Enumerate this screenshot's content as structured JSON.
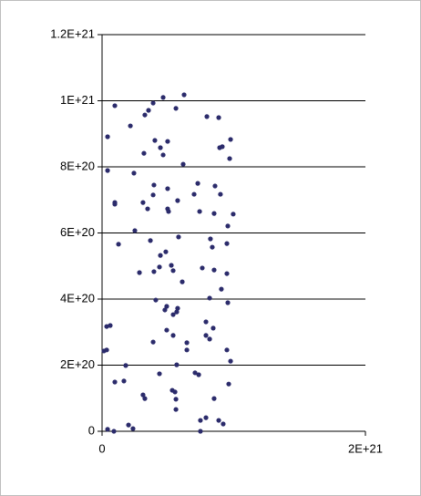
{
  "chart_data": {
    "type": "scatter",
    "color": "#2b2b6b",
    "grid": true,
    "xlim": [
      0,
      2e+21
    ],
    "xticks": [
      0,
      {
        "value": 2e+21,
        "label": "2E+21"
      }
    ],
    "ylim": [
      0,
      1.2e+21
    ],
    "yticks": [
      0,
      {
        "value": 2e+20,
        "label": "2E+20"
      },
      {
        "value": 4e+20,
        "label": "4E+20"
      },
      {
        "value": 6e+20,
        "label": "6E+20"
      },
      {
        "value": 8e+20,
        "label": "8E+20"
      },
      {
        "value": 1e+21,
        "label": "1E+21"
      },
      {
        "value": 1.2e+21,
        "label": "1.2E+21"
      }
    ],
    "x": [
      9.7e+19,
      2.15e+20,
      3.25e+20,
      3.53e+20,
      3.88e+20,
      4.64e+20,
      5.61e+20,
      6.23e+20,
      4.2e+19,
      4.2e+19,
      2.42e+20,
      3.18e+20,
      4.01e+20,
      4.43e+20,
      4.64e+20,
      4.98e+20,
      6.16e+20,
      7.96e+20,
      8.86e+20,
      8.93e+20,
      9.13e+20,
      9.76e+20,
      9.69e+20,
      9.7e+19,
      9.7e+19,
      3.11e+20,
      3.46e+20,
      3.88e+20,
      3.94e+20,
      4.98e+20,
      4.98e+20,
      5.05e+20,
      5.74e+20,
      6.99e+20,
      7.27e+20,
      7.41e+20,
      8.58e+20,
      8.99e+20,
      8.51e+20,
      9.55e+20,
      9.96e+20,
      2.49e+20,
      1.25e+20,
      3.67e+20,
      5.81e+20,
      8.23e+20,
      8.37e+20,
      9.48e+20,
      4.84e+20,
      4.43e+20,
      5.26e+20,
      5.4e+20,
      4.36e+20,
      2.84e+20,
      3.94e+20,
      6.09e+20,
      7.61e+20,
      8.51e+20,
      9.48e+20,
      9.06e+20,
      8.17e+20,
      4.08e+20,
      4.91e+20,
      4.77e+20,
      5.74e+20,
      5.67e+20,
      5.4e+20,
      9.55e+20,
      7.89e+20,
      8.44e+20,
      7.89e+20,
      8.17e+20,
      4.91e+20,
      5.4e+20,
      3.88e+20,
      6.44e+20,
      6.44e+20,
      9.48e+20,
      9.76e+20,
      3.5e+19,
      6.2e+19,
      1.4e+19,
      3.5e+19,
      1.8e+20,
      9.7e+19,
      1.66e+20,
      4.36e+20,
      5.67e+20,
      7.06e+20,
      7.34e+20,
      5.33e+20,
      5.54e+20,
      5.61e+20,
      5.61e+20,
      9.62e+20,
      3.11e+20,
      3.25e+20,
      8.51e+20,
      7.47e+20,
      7.89e+20,
      8.86e+20,
      9.2e+20,
      2.01e+20,
      2.35e+20,
      4.2e+19,
      9e+19,
      7.47e+20
    ],
    "values": [
      9.85e+20,
      9.24e+20,
      9.57e+20,
      9.71e+20,
      9.93e+20,
      1.01e+21,
      9.77e+20,
      1.018e+21,
      8.91e+20,
      7.89e+20,
      7.81e+20,
      8.41e+20,
      8.8e+20,
      8.58e+20,
      8.36e+20,
      8.77e+20,
      8.08e+20,
      9.52e+20,
      9.49e+20,
      8.58e+20,
      8.61e+20,
      8.83e+20,
      8.25e+20,
      6.92e+20,
      6.87e+20,
      6.92e+20,
      6.73e+20,
      7.15e+20,
      7.45e+20,
      7.34e+20,
      6.73e+20,
      6.65e+20,
      6.98e+20,
      7.17e+20,
      7.5e+20,
      6.65e+20,
      7.42e+20,
      7.17e+20,
      6.59e+20,
      6.21e+20,
      6.57e+20,
      6.07e+20,
      5.66e+20,
      5.77e+20,
      5.88e+20,
      5.82e+20,
      5.57e+20,
      5.68e+20,
      5.43e+20,
      5.32e+20,
      5.02e+20,
      4.86e+20,
      4.97e+20,
      4.8e+20,
      4.83e+20,
      4.52e+20,
      4.94e+20,
      4.88e+20,
      4.77e+20,
      4.3e+20,
      4.03e+20,
      3.97e+20,
      3.78e+20,
      3.67e+20,
      3.72e+20,
      3.61e+20,
      3.53e+20,
      3.89e+20,
      3.31e+20,
      3.12e+20,
      2.9e+20,
      2.79e+20,
      3.06e+20,
      2.9e+20,
      2.7e+20,
      2.68e+20,
      2.46e+20,
      2.46e+20,
      2.12e+20,
      3.17e+20,
      3.2e+20,
      2.43e+20,
      2.46e+20,
      1.99e+20,
      1.49e+20,
      1.52e+20,
      1.74e+20,
      2.01e+20,
      1.77e+20,
      1.71e+20,
      1.24e+20,
      1.19e+20,
      9.7e+19,
      6.6e+19,
      1.43e+20,
      1.1e+20,
      9.9e+19,
      9.9e+19,
      3.3e+19,
      4.1e+19,
      3.3e+19,
      2.2e+19,
      1.9e+19,
      8e+18,
      6e+18,
      0,
      0
    ]
  }
}
